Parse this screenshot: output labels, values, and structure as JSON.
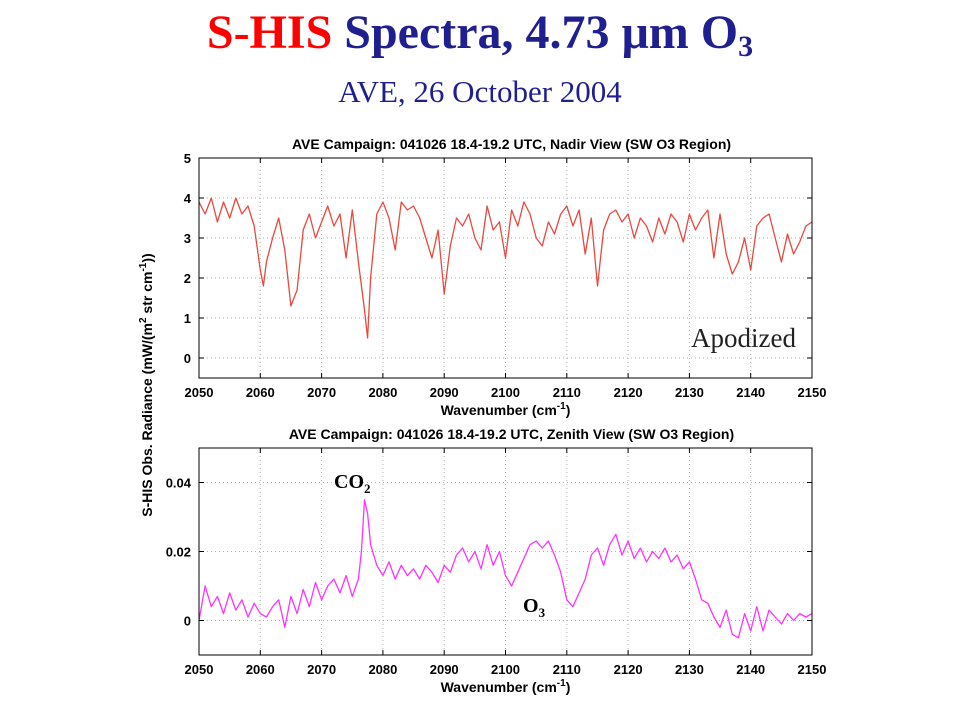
{
  "slide": {
    "title_part1": "S-HIS",
    "title_part2": "Spectra, 4.73 ",
    "title_mu": "μ",
    "title_part3": "m O",
    "title_sub": "3",
    "subtitle": "AVE, 26 October 2004"
  },
  "shared_ylabel": {
    "pre": "S-HIS Obs. Radiance (mW/(m",
    "sup2": "2",
    "mid": " str cm",
    "supm1": "-1",
    "post": "))"
  },
  "colors": {
    "nadir_line": "#e8493f",
    "zenith_line": "#ff33ff",
    "title_red": "#ff0000",
    "title_blue": "#1f1f8f",
    "grid": "#b0b0b0"
  },
  "chart_data": [
    {
      "type": "line",
      "title": "AVE Campaign: 041026 18.4-19.2 UTC, Nadir View (SW O3 Region)",
      "xlabel_pre": "Wavenumber (cm",
      "xlabel_sup": "-1",
      "xlabel_post": ")",
      "xlim": [
        2050,
        2150
      ],
      "ylim": [
        -0.5,
        5
      ],
      "xticks": [
        "2050",
        "2060",
        "2070",
        "2080",
        "2090",
        "2100",
        "2110",
        "2120",
        "2130",
        "2140",
        "2150"
      ],
      "yticks": [
        "0",
        "1",
        "2",
        "3",
        "4",
        "5"
      ],
      "ytick_values": [
        0,
        1,
        2,
        3,
        4,
        5
      ],
      "grid": true,
      "annotation": "Apodized",
      "series": [
        {
          "x": [
            2050,
            2051,
            2052,
            2053,
            2054,
            2055,
            2056,
            2057,
            2058,
            2059,
            2060,
            2060.5,
            2061,
            2062,
            2063,
            2064,
            2065,
            2066,
            2067,
            2068,
            2069,
            2070,
            2071,
            2072,
            2073,
            2074,
            2075,
            2076,
            2077,
            2077.5,
            2078,
            2079,
            2080,
            2081,
            2082,
            2083,
            2084,
            2085,
            2086,
            2087,
            2088,
            2089,
            2090,
            2091,
            2092,
            2093,
            2094,
            2095,
            2096,
            2097,
            2098,
            2099,
            2100,
            2101,
            2102,
            2103,
            2104,
            2105,
            2106,
            2107,
            2108,
            2109,
            2110,
            2111,
            2112,
            2113,
            2114,
            2115,
            2116,
            2117,
            2118,
            2119,
            2120,
            2121,
            2122,
            2123,
            2124,
            2125,
            2126,
            2127,
            2128,
            2129,
            2130,
            2131,
            2132,
            2133,
            2134,
            2135,
            2136,
            2137,
            2138,
            2139,
            2140,
            2141,
            2142,
            2143,
            2144,
            2145,
            2146,
            2147,
            2148,
            2149,
            2150
          ],
          "y": [
            3.9,
            3.6,
            4.0,
            3.4,
            3.9,
            3.5,
            4.0,
            3.6,
            3.8,
            3.3,
            2.2,
            1.8,
            2.4,
            3.0,
            3.5,
            2.7,
            1.3,
            1.7,
            3.2,
            3.6,
            3.0,
            3.4,
            3.8,
            3.3,
            3.6,
            2.5,
            3.7,
            2.4,
            1.2,
            0.5,
            2.0,
            3.6,
            3.9,
            3.5,
            2.7,
            3.9,
            3.7,
            3.8,
            3.5,
            3.0,
            2.5,
            3.2,
            1.6,
            2.8,
            3.5,
            3.3,
            3.6,
            3.0,
            2.7,
            3.8,
            3.2,
            3.4,
            2.5,
            3.7,
            3.3,
            3.9,
            3.6,
            3.0,
            2.8,
            3.4,
            3.1,
            3.6,
            3.8,
            3.3,
            3.7,
            2.6,
            3.5,
            1.8,
            3.2,
            3.6,
            3.7,
            3.4,
            3.6,
            3.0,
            3.5,
            3.3,
            2.9,
            3.5,
            3.1,
            3.6,
            3.4,
            2.9,
            3.6,
            3.2,
            3.5,
            3.7,
            2.5,
            3.6,
            2.6,
            2.1,
            2.4,
            3.0,
            2.2,
            3.3,
            3.5,
            3.6,
            3.0,
            2.4,
            3.1,
            2.6,
            2.9,
            3.3,
            3.4
          ]
        }
      ]
    },
    {
      "type": "line",
      "title": "AVE Campaign: 041026 18.4-19.2 UTC, Zenith View (SW O3 Region)",
      "xlabel_pre": "Wavenumber (cm",
      "xlabel_sup": "-1",
      "xlabel_post": ")",
      "xlim": [
        2050,
        2150
      ],
      "ylim": [
        -0.01,
        0.05
      ],
      "xticks": [
        "2050",
        "2060",
        "2070",
        "2080",
        "2090",
        "2100",
        "2110",
        "2120",
        "2130",
        "2140",
        "2150"
      ],
      "yticks": [
        "0",
        "0.02",
        "0.04"
      ],
      "ytick_values": [
        0,
        0.02,
        0.04
      ],
      "grid": true,
      "annotations": [
        {
          "base": "CO",
          "sub": "2"
        },
        {
          "base": "O",
          "sub": "3"
        }
      ],
      "series": [
        {
          "x": [
            2050,
            2051,
            2052,
            2053,
            2054,
            2055,
            2056,
            2057,
            2058,
            2059,
            2060,
            2061,
            2062,
            2063,
            2064,
            2065,
            2066,
            2067,
            2068,
            2069,
            2070,
            2071,
            2072,
            2073,
            2074,
            2075,
            2076,
            2076.5,
            2077,
            2077.5,
            2078,
            2079,
            2080,
            2081,
            2082,
            2083,
            2084,
            2085,
            2086,
            2087,
            2088,
            2089,
            2090,
            2091,
            2092,
            2093,
            2094,
            2095,
            2096,
            2097,
            2098,
            2099,
            2100,
            2101,
            2102,
            2103,
            2104,
            2105,
            2106,
            2107,
            2108,
            2109,
            2110,
            2111,
            2112,
            2113,
            2114,
            2115,
            2116,
            2117,
            2118,
            2119,
            2120,
            2121,
            2122,
            2123,
            2124,
            2125,
            2126,
            2127,
            2128,
            2129,
            2130,
            2131,
            2132,
            2133,
            2134,
            2135,
            2136,
            2137,
            2138,
            2139,
            2140,
            2141,
            2142,
            2143,
            2144,
            2145,
            2146,
            2147,
            2148,
            2149,
            2150
          ],
          "y": [
            0.0,
            0.01,
            0.004,
            0.007,
            0.002,
            0.008,
            0.003,
            0.006,
            0.001,
            0.005,
            0.002,
            0.001,
            0.004,
            0.006,
            -0.002,
            0.007,
            0.002,
            0.009,
            0.004,
            0.011,
            0.006,
            0.01,
            0.012,
            0.008,
            0.013,
            0.007,
            0.012,
            0.02,
            0.035,
            0.031,
            0.022,
            0.016,
            0.013,
            0.017,
            0.012,
            0.016,
            0.013,
            0.015,
            0.012,
            0.016,
            0.014,
            0.011,
            0.016,
            0.014,
            0.019,
            0.021,
            0.017,
            0.02,
            0.015,
            0.022,
            0.016,
            0.02,
            0.013,
            0.01,
            0.014,
            0.018,
            0.022,
            0.023,
            0.021,
            0.023,
            0.019,
            0.014,
            0.006,
            0.004,
            0.008,
            0.012,
            0.019,
            0.021,
            0.016,
            0.022,
            0.025,
            0.019,
            0.023,
            0.018,
            0.021,
            0.017,
            0.02,
            0.018,
            0.021,
            0.017,
            0.019,
            0.015,
            0.017,
            0.012,
            0.006,
            0.005,
            0.001,
            -0.002,
            0.003,
            -0.004,
            -0.005,
            0.002,
            -0.003,
            0.004,
            -0.003,
            0.003,
            0.001,
            -0.001,
            0.002,
            0.0,
            0.002,
            0.001,
            0.002
          ]
        }
      ]
    }
  ]
}
